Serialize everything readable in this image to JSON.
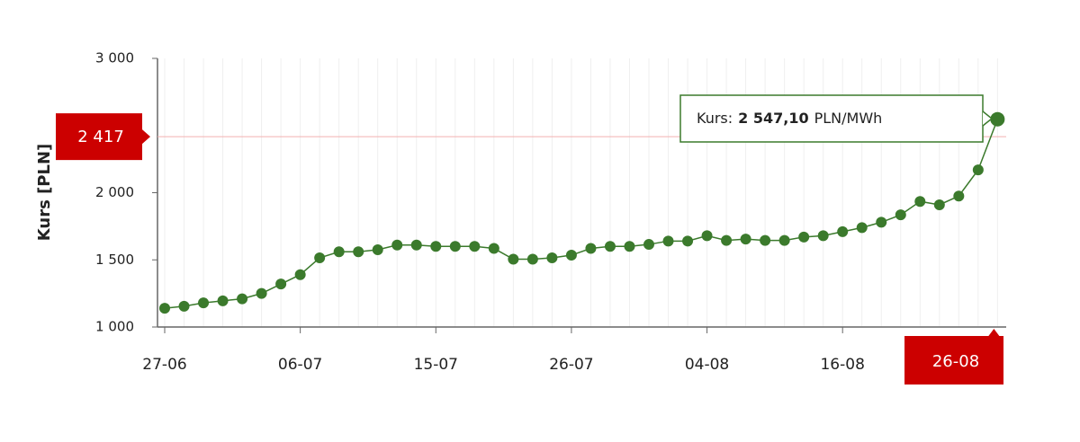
{
  "chart_data": {
    "type": "line",
    "y_label": "Kurs [PLN]",
    "categories": [
      "27-06",
      null,
      null,
      null,
      null,
      null,
      null,
      "06-07",
      null,
      null,
      null,
      null,
      null,
      null,
      "15-07",
      null,
      null,
      null,
      null,
      null,
      null,
      "26-07",
      null,
      null,
      null,
      null,
      null,
      null,
      "04-08",
      null,
      null,
      null,
      null,
      null,
      null,
      "16-08",
      null,
      null,
      null,
      null,
      null,
      null,
      null,
      "26-08"
    ],
    "series": [
      {
        "name": "Kurs",
        "color": "#3b7a2c",
        "values": [
          1140,
          1155,
          1180,
          1195,
          1210,
          1250,
          1320,
          1390,
          1515,
          1560,
          1560,
          1575,
          1610,
          1610,
          1600,
          1600,
          1600,
          1585,
          1505,
          1505,
          1515,
          1535,
          1585,
          1600,
          1600,
          1615,
          1640,
          1640,
          1680,
          1645,
          1655,
          1645,
          1645,
          1670,
          1680,
          1710,
          1740,
          1780,
          1835,
          1935,
          1910,
          1975,
          2170,
          2547.1
        ]
      }
    ],
    "ylim": [
      1000,
      3000
    ],
    "yticks": [
      {
        "value": 1000,
        "label": "1 000"
      },
      {
        "value": 1500,
        "label": "1 500"
      },
      {
        "value": 2000,
        "label": "2 000"
      },
      {
        "value": 3000,
        "label": "3 000"
      }
    ],
    "crosshair": {
      "y": 2417,
      "y_label": "2 417",
      "color": "#cc0000"
    },
    "tooltip": {
      "name": "Kurs:",
      "value_label": "2 547,10",
      "unit": "PLN/MWh"
    }
  }
}
